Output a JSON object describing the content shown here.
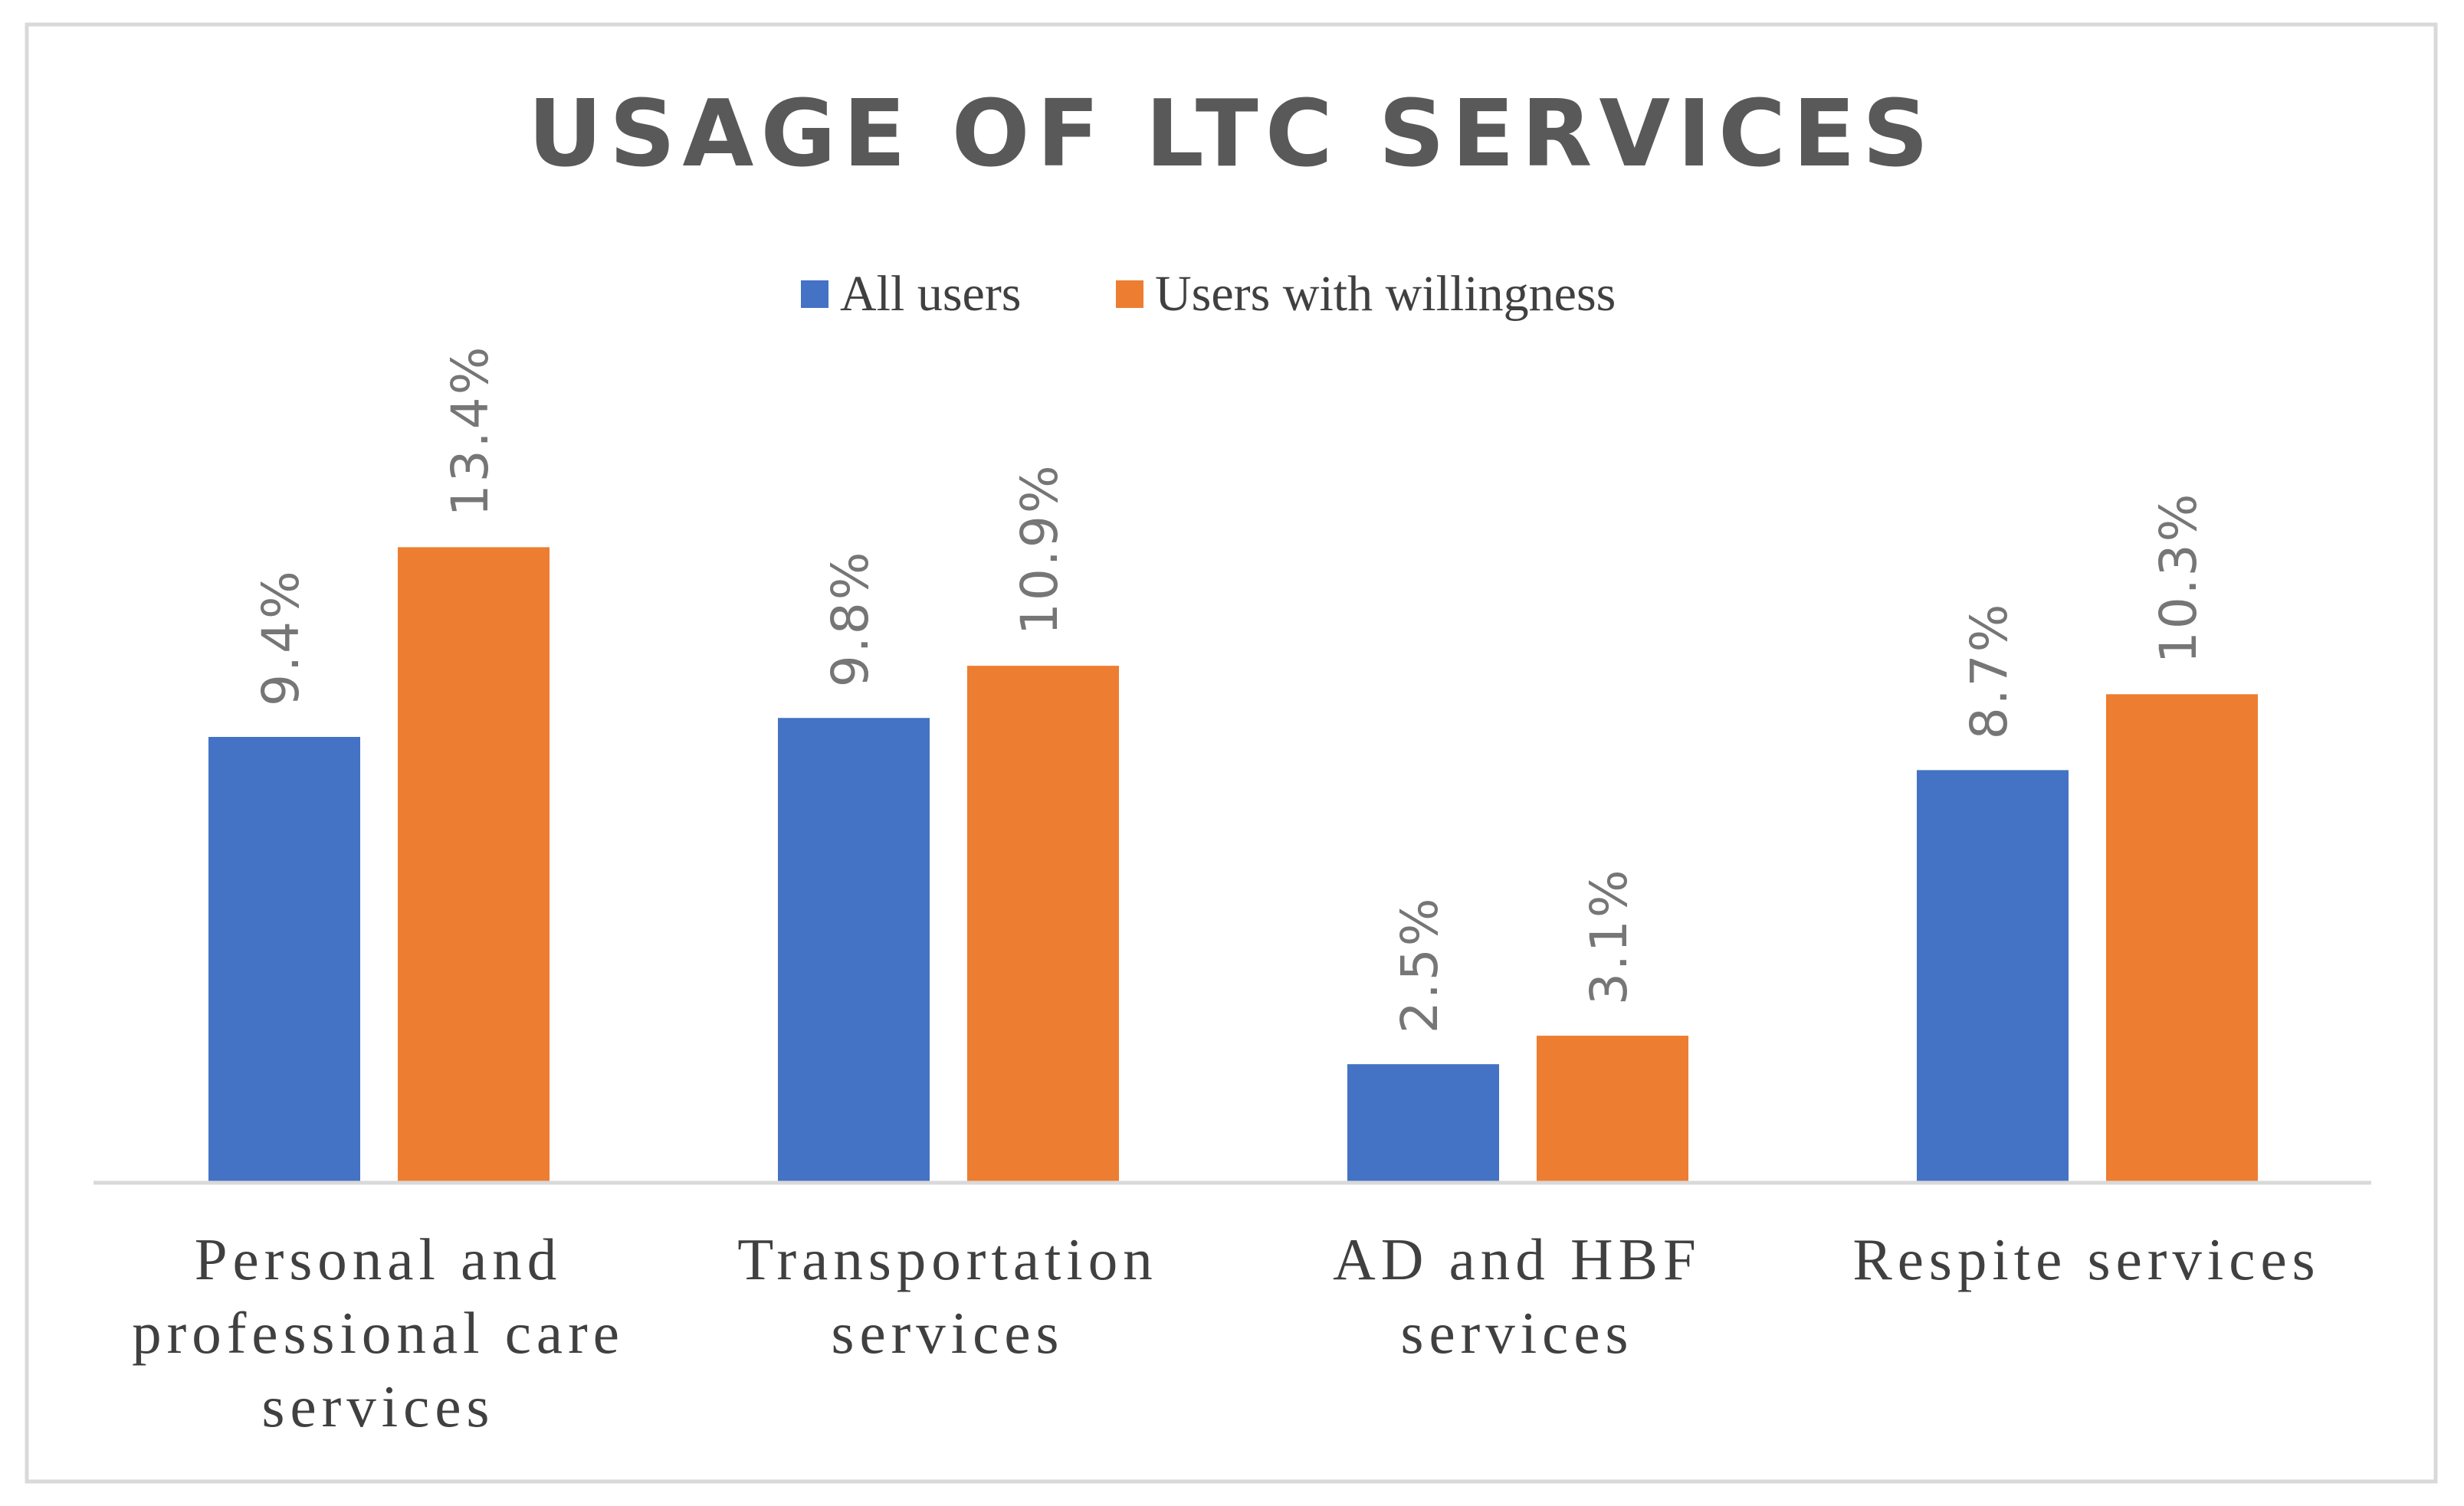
{
  "chart_data": {
    "type": "bar",
    "title": "USAGE OF LTC SERVICES",
    "categories": [
      [
        "Personal and",
        "professional care",
        "services"
      ],
      [
        "Transportation",
        "services"
      ],
      [
        "AD and HBF",
        "services"
      ],
      [
        "Respite services"
      ]
    ],
    "series": [
      {
        "name": "All users",
        "color": "#4472C4",
        "values": [
          9.4,
          9.8,
          2.5,
          8.7
        ],
        "labels": [
          "9.4%",
          "9.8%",
          "2.5%",
          "8.7%"
        ]
      },
      {
        "name": "Users with willingness",
        "color": "#ED7D31",
        "values": [
          13.4,
          10.9,
          3.1,
          10.3
        ],
        "labels": [
          "13.4%",
          "10.9%",
          "3.1%",
          "10.3%"
        ]
      }
    ],
    "ylim": [
      0,
      20.9
    ],
    "xlabel": "",
    "ylabel": "",
    "grid": false,
    "legend_position": "top"
  }
}
